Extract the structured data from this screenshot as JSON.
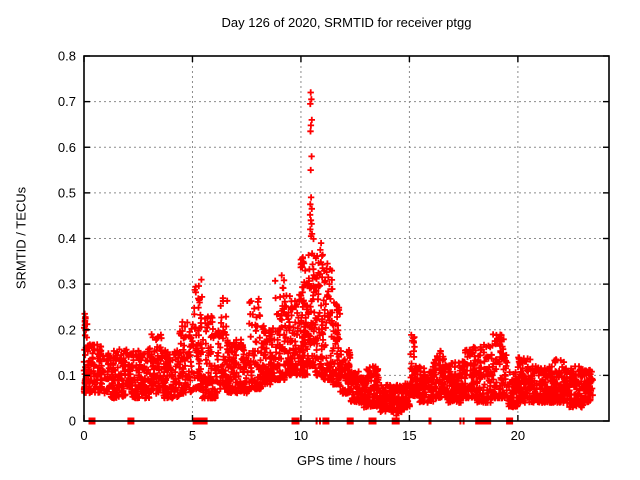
{
  "window": {
    "description": "Gnuplot-style scatter chart on white background, no window chrome"
  },
  "chart_data": {
    "type": "scatter",
    "title": "Day 126 of 2020, SRMTID for receiver ptgg",
    "xlabel": "GPS time / hours",
    "ylabel": "SRMTID / TECUs",
    "xlim": [
      0,
      24.2
    ],
    "ylim": [
      0,
      0.8
    ],
    "xticks": {
      "values": [
        0,
        5,
        10,
        15,
        20
      ],
      "labels": [
        "0",
        "5",
        "10",
        "15",
        "20"
      ]
    },
    "yticks": {
      "values": [
        0,
        0.1,
        0.2,
        0.3,
        0.4,
        0.5,
        0.6,
        0.7,
        0.8
      ],
      "labels": [
        "0",
        "0.1",
        "0.2",
        "0.3",
        "0.4",
        "0.5",
        "0.6",
        "0.7",
        "0.8"
      ]
    },
    "grid": true,
    "legend": "none",
    "marker": "plus",
    "marker_color": "#ff0000",
    "series_name": "SRMTID",
    "representation": "dense scatter (~3300 samples) captured as density envelope bands [x_start_h, x_end_h, y_min_TECU, y_max_TECU, n_points, low_bias] plus explicit outlier points",
    "bands": [
      [
        0.0,
        0.15,
        0.18,
        0.235,
        12,
        1.0
      ],
      [
        0.0,
        1.0,
        0.06,
        0.17,
        130,
        1.3
      ],
      [
        1.0,
        2.2,
        0.05,
        0.16,
        150,
        1.3
      ],
      [
        2.2,
        3.1,
        0.05,
        0.16,
        110,
        1.3
      ],
      [
        3.1,
        3.6,
        0.06,
        0.19,
        70,
        1.4
      ],
      [
        3.6,
        4.4,
        0.05,
        0.155,
        100,
        1.3
      ],
      [
        4.4,
        5.0,
        0.06,
        0.22,
        80,
        1.6
      ],
      [
        5.0,
        5.45,
        0.07,
        0.31,
        70,
        2.0
      ],
      [
        5.45,
        6.2,
        0.05,
        0.23,
        100,
        1.7
      ],
      [
        6.2,
        6.6,
        0.07,
        0.27,
        55,
        1.9
      ],
      [
        6.6,
        7.6,
        0.06,
        0.18,
        130,
        1.3
      ],
      [
        7.6,
        8.15,
        0.07,
        0.3,
        80,
        2.0
      ],
      [
        8.15,
        8.8,
        0.08,
        0.21,
        90,
        1.4
      ],
      [
        8.8,
        9.25,
        0.09,
        0.32,
        70,
        1.9
      ],
      [
        9.25,
        9.95,
        0.1,
        0.28,
        110,
        1.5
      ],
      [
        9.95,
        10.3,
        0.1,
        0.36,
        80,
        1.7
      ],
      [
        10.3,
        10.65,
        0.12,
        0.4,
        70,
        1.6
      ],
      [
        10.65,
        11.05,
        0.1,
        0.38,
        70,
        1.7
      ],
      [
        11.05,
        11.45,
        0.09,
        0.35,
        60,
        1.8
      ],
      [
        11.45,
        11.8,
        0.08,
        0.26,
        60,
        1.6
      ],
      [
        11.8,
        12.3,
        0.06,
        0.16,
        70,
        1.4
      ],
      [
        12.3,
        12.9,
        0.04,
        0.11,
        90,
        1.3
      ],
      [
        12.9,
        13.6,
        0.03,
        0.12,
        110,
        1.4
      ],
      [
        13.6,
        14.8,
        0.02,
        0.08,
        170,
        1.2
      ],
      [
        14.8,
        15.05,
        0.03,
        0.09,
        35,
        1.3
      ],
      [
        15.05,
        15.3,
        0.05,
        0.2,
        40,
        1.8
      ],
      [
        15.3,
        16.1,
        0.04,
        0.12,
        110,
        1.3
      ],
      [
        16.1,
        16.7,
        0.05,
        0.155,
        80,
        1.4
      ],
      [
        16.7,
        17.4,
        0.04,
        0.13,
        95,
        1.3
      ],
      [
        17.4,
        18.1,
        0.05,
        0.165,
        95,
        1.5
      ],
      [
        18.1,
        18.8,
        0.04,
        0.175,
        95,
        1.5
      ],
      [
        18.8,
        19.55,
        0.05,
        0.19,
        100,
        1.6
      ],
      [
        19.55,
        20.0,
        0.03,
        0.11,
        60,
        1.3
      ],
      [
        20.0,
        20.6,
        0.04,
        0.14,
        85,
        1.4
      ],
      [
        20.6,
        21.6,
        0.04,
        0.12,
        140,
        1.3
      ],
      [
        21.6,
        22.3,
        0.04,
        0.135,
        100,
        1.4
      ],
      [
        22.3,
        23.0,
        0.03,
        0.12,
        100,
        1.4
      ],
      [
        23.0,
        23.45,
        0.04,
        0.115,
        65,
        1.3
      ]
    ],
    "outliers": [
      [
        10.45,
        0.72
      ],
      [
        10.48,
        0.705
      ],
      [
        10.43,
        0.695
      ],
      [
        10.5,
        0.66
      ],
      [
        10.46,
        0.648
      ],
      [
        10.44,
        0.635
      ],
      [
        10.49,
        0.58
      ],
      [
        10.45,
        0.55
      ],
      [
        10.47,
        0.49
      ],
      [
        10.43,
        0.475
      ],
      [
        10.5,
        0.465
      ],
      [
        10.42,
        0.452
      ],
      [
        10.46,
        0.44
      ],
      [
        10.49,
        0.432
      ],
      [
        10.43,
        0.42
      ],
      [
        10.51,
        0.41
      ],
      [
        10.47,
        0.405
      ],
      [
        10.93,
        0.39
      ],
      [
        10.89,
        0.375
      ],
      [
        10.97,
        0.362
      ],
      [
        10.92,
        0.348
      ],
      [
        11.0,
        0.335
      ],
      [
        10.88,
        0.322
      ],
      [
        11.22,
        0.345
      ],
      [
        11.26,
        0.315
      ],
      [
        11.31,
        0.3
      ],
      [
        14.4,
        0.012
      ],
      [
        0.03,
        0.235
      ],
      [
        0.06,
        0.228
      ],
      [
        0.04,
        0.21
      ],
      [
        0.09,
        0.2
      ]
    ],
    "zero_markers": {
      "description": "filled red squares sitting on y=0 axis; x in hours, w = on-screen width px",
      "items": [
        [
          0.37,
          7
        ],
        [
          2.16,
          7
        ],
        [
          5.35,
          15
        ],
        [
          9.75,
          8
        ],
        [
          10.72,
          2
        ],
        [
          10.88,
          2
        ],
        [
          11.15,
          7
        ],
        [
          12.27,
          7
        ],
        [
          13.3,
          8
        ],
        [
          14.37,
          8
        ],
        [
          15.95,
          3
        ],
        [
          17.35,
          2
        ],
        [
          17.5,
          2
        ],
        [
          18.4,
          16
        ],
        [
          19.62,
          7
        ]
      ]
    }
  },
  "colors": {
    "marker": "#ff0000",
    "axis": "#000000",
    "grid": "#8c8c8c",
    "text": "#000000",
    "background": "#ffffff"
  }
}
